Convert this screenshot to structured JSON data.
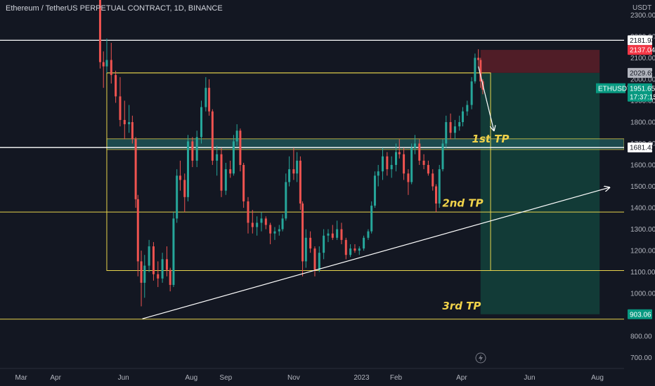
{
  "header": {
    "title": "Ethereum / TetherUS PERPETUAL CONTRACT, 1D, BINANCE"
  },
  "currency": "USDT",
  "colors": {
    "background": "#131722",
    "up": "#26a69a",
    "down": "#ef5350",
    "zone_line": "#e8d44d",
    "level_line": "#ffffff",
    "stop_zone": "#5c1f28",
    "target_zone": "#133f3a"
  },
  "y_axis": {
    "min": 650,
    "max": 2370,
    "ticks": [
      "700.00",
      "800.00",
      "900.00",
      "1000.00",
      "1100.00",
      "1200.00",
      "1300.00",
      "1400.00",
      "1500.00",
      "1600.00",
      "1700.00",
      "1800.00",
      "1900.00",
      "2000.00",
      "2100.00",
      "2200.00",
      "2300.00"
    ]
  },
  "x_axis": {
    "labels": [
      {
        "label": "Mar",
        "date": "2022-03-01"
      },
      {
        "label": "Apr",
        "date": "2022-04-01"
      },
      {
        "label": "Jun",
        "date": "2022-06-01"
      },
      {
        "label": "Aug",
        "date": "2022-08-01"
      },
      {
        "label": "Sep",
        "date": "2022-09-01"
      },
      {
        "label": "Nov",
        "date": "2022-11-01"
      },
      {
        "label": "2023",
        "date": "2023-01-01"
      },
      {
        "label": "Feb",
        "date": "2023-02-01"
      },
      {
        "label": "Apr",
        "date": "2023-04-01"
      },
      {
        "label": "Jun",
        "date": "2023-06-01"
      },
      {
        "label": "Aug",
        "date": "2023-08-01"
      }
    ]
  },
  "price_tags": [
    {
      "value": "2181.93",
      "price": 2181.93,
      "style": "white"
    },
    {
      "value": "2137.04",
      "price": 2137.04,
      "style": "red"
    },
    {
      "value": "2029.69",
      "price": 2029.69,
      "style": "grey"
    },
    {
      "value": "1681.42",
      "price": 1681.42,
      "style": "white"
    },
    {
      "value": "903.06",
      "price": 903.06,
      "style": "green"
    }
  ],
  "last_price": {
    "symbol": "ETHUSDT.P",
    "price": "1951.65",
    "countdown": "17:37:15",
    "value": 1951.65
  },
  "annotations": {
    "tp1": {
      "label": "1st TP",
      "date": "2023-04-27",
      "price": 1705
    },
    "tp2": {
      "label": "2nd TP",
      "date": "2023-04-02",
      "price": 1405
    },
    "tp3": {
      "label": "3rd TP",
      "date": "2023-04-01",
      "price": 925
    }
  },
  "chart_data": {
    "type": "candlestick",
    "title": "",
    "xlabel": "",
    "ylabel": "",
    "x_range": [
      "2022-02-10",
      "2023-08-25"
    ],
    "y_range": [
      650,
      2370
    ],
    "grid": false,
    "horizontal_levels": [
      {
        "price": 2181.93,
        "color": "white",
        "from": "2022-02-10",
        "to": "2023-08-25"
      },
      {
        "price": 2029.69,
        "color": "yellow",
        "from": "2022-05-17",
        "to": "2023-04-27"
      },
      {
        "price": 1681.42,
        "color": "white",
        "from": "2022-02-10",
        "to": "2023-08-25"
      },
      {
        "price": 1380,
        "color": "yellow",
        "from": "2022-02-10",
        "to": "2023-08-25"
      },
      {
        "price": 1107,
        "color": "yellow",
        "from": "2022-05-17",
        "to": "2023-08-25"
      },
      {
        "price": 880,
        "color": "yellow",
        "from": "2022-02-10",
        "to": "2023-08-25"
      }
    ],
    "range_box": {
      "from": "2022-05-17",
      "to": "2023-04-27",
      "top": 2029.69,
      "bottom": 1107
    },
    "support_zone": {
      "from": "2022-05-17",
      "to": "2023-08-25",
      "top": 1722,
      "bottom": 1672
    },
    "trendline": {
      "from": {
        "date": "2022-06-18",
        "price": 882
      },
      "to": {
        "date": "2023-08-12",
        "price": 1495
      }
    },
    "projection_arrow": {
      "from": {
        "date": "2023-04-16",
        "price": 2060
      },
      "to": {
        "date": "2023-04-30",
        "price": 1760
      }
    },
    "position": {
      "from": "2023-04-18",
      "to": "2023-08-03",
      "entry": 2029.69,
      "stop": 2137.04,
      "target": 903.06
    },
    "series": [
      {
        "d": "2022-05-11",
        "o": 2460,
        "h": 2470,
        "l": 2050,
        "c": 2080
      },
      {
        "d": "2022-05-14",
        "o": 2080,
        "h": 2130,
        "l": 1960,
        "c": 2060
      },
      {
        "d": "2022-05-17",
        "o": 2060,
        "h": 2190,
        "l": 2030,
        "c": 2090
      },
      {
        "d": "2022-05-21",
        "o": 2090,
        "h": 2170,
        "l": 1980,
        "c": 2020
      },
      {
        "d": "2022-05-25",
        "o": 2020,
        "h": 2040,
        "l": 1890,
        "c": 1920
      },
      {
        "d": "2022-05-29",
        "o": 1920,
        "h": 2010,
        "l": 1780,
        "c": 1810
      },
      {
        "d": "2022-06-02",
        "o": 1810,
        "h": 1900,
        "l": 1720,
        "c": 1790
      },
      {
        "d": "2022-06-06",
        "o": 1790,
        "h": 1880,
        "l": 1750,
        "c": 1800
      },
      {
        "d": "2022-06-09",
        "o": 1800,
        "h": 1830,
        "l": 1700,
        "c": 1720
      },
      {
        "d": "2022-06-12",
        "o": 1720,
        "h": 1730,
        "l": 1400,
        "c": 1440
      },
      {
        "d": "2022-06-14",
        "o": 1440,
        "h": 1460,
        "l": 1080,
        "c": 1150
      },
      {
        "d": "2022-06-17",
        "o": 1150,
        "h": 1200,
        "l": 940,
        "c": 1050
      },
      {
        "d": "2022-06-20",
        "o": 1050,
        "h": 1180,
        "l": 980,
        "c": 1130
      },
      {
        "d": "2022-06-24",
        "o": 1130,
        "h": 1250,
        "l": 1100,
        "c": 1220
      },
      {
        "d": "2022-06-28",
        "o": 1220,
        "h": 1240,
        "l": 1060,
        "c": 1090
      },
      {
        "d": "2022-07-02",
        "o": 1090,
        "h": 1150,
        "l": 1030,
        "c": 1070
      },
      {
        "d": "2022-07-06",
        "o": 1070,
        "h": 1190,
        "l": 1050,
        "c": 1160
      },
      {
        "d": "2022-07-10",
        "o": 1160,
        "h": 1220,
        "l": 1080,
        "c": 1110
      },
      {
        "d": "2022-07-13",
        "o": 1110,
        "h": 1120,
        "l": 1010,
        "c": 1040
      },
      {
        "d": "2022-07-16",
        "o": 1040,
        "h": 1380,
        "l": 1030,
        "c": 1350
      },
      {
        "d": "2022-07-19",
        "o": 1350,
        "h": 1580,
        "l": 1330,
        "c": 1550
      },
      {
        "d": "2022-07-22",
        "o": 1550,
        "h": 1620,
        "l": 1480,
        "c": 1530
      },
      {
        "d": "2022-07-26",
        "o": 1530,
        "h": 1560,
        "l": 1380,
        "c": 1450
      },
      {
        "d": "2022-07-29",
        "o": 1450,
        "h": 1740,
        "l": 1430,
        "c": 1710
      },
      {
        "d": "2022-08-02",
        "o": 1710,
        "h": 1730,
        "l": 1590,
        "c": 1620
      },
      {
        "d": "2022-08-06",
        "o": 1620,
        "h": 1760,
        "l": 1590,
        "c": 1730
      },
      {
        "d": "2022-08-10",
        "o": 1730,
        "h": 1900,
        "l": 1700,
        "c": 1870
      },
      {
        "d": "2022-08-14",
        "o": 1870,
        "h": 2010,
        "l": 1850,
        "c": 1960
      },
      {
        "d": "2022-08-17",
        "o": 1960,
        "h": 2000,
        "l": 1830,
        "c": 1850
      },
      {
        "d": "2022-08-20",
        "o": 1850,
        "h": 1860,
        "l": 1600,
        "c": 1620
      },
      {
        "d": "2022-08-24",
        "o": 1620,
        "h": 1690,
        "l": 1550,
        "c": 1650
      },
      {
        "d": "2022-08-28",
        "o": 1650,
        "h": 1680,
        "l": 1450,
        "c": 1480
      },
      {
        "d": "2022-09-01",
        "o": 1480,
        "h": 1610,
        "l": 1460,
        "c": 1580
      },
      {
        "d": "2022-09-05",
        "o": 1580,
        "h": 1620,
        "l": 1540,
        "c": 1560
      },
      {
        "d": "2022-09-08",
        "o": 1560,
        "h": 1740,
        "l": 1550,
        "c": 1710
      },
      {
        "d": "2022-09-11",
        "o": 1710,
        "h": 1790,
        "l": 1690,
        "c": 1760
      },
      {
        "d": "2022-09-14",
        "o": 1760,
        "h": 1770,
        "l": 1570,
        "c": 1600
      },
      {
        "d": "2022-09-17",
        "o": 1600,
        "h": 1610,
        "l": 1400,
        "c": 1430
      },
      {
        "d": "2022-09-21",
        "o": 1430,
        "h": 1450,
        "l": 1280,
        "c": 1330
      },
      {
        "d": "2022-09-25",
        "o": 1330,
        "h": 1390,
        "l": 1280,
        "c": 1310
      },
      {
        "d": "2022-09-29",
        "o": 1310,
        "h": 1360,
        "l": 1270,
        "c": 1330
      },
      {
        "d": "2022-10-03",
        "o": 1330,
        "h": 1380,
        "l": 1290,
        "c": 1350
      },
      {
        "d": "2022-10-07",
        "o": 1350,
        "h": 1360,
        "l": 1300,
        "c": 1320
      },
      {
        "d": "2022-10-11",
        "o": 1320,
        "h": 1330,
        "l": 1230,
        "c": 1280
      },
      {
        "d": "2022-10-15",
        "o": 1280,
        "h": 1310,
        "l": 1250,
        "c": 1290
      },
      {
        "d": "2022-10-19",
        "o": 1290,
        "h": 1320,
        "l": 1270,
        "c": 1300
      },
      {
        "d": "2022-10-22",
        "o": 1300,
        "h": 1370,
        "l": 1290,
        "c": 1350
      },
      {
        "d": "2022-10-25",
        "o": 1350,
        "h": 1560,
        "l": 1340,
        "c": 1520
      },
      {
        "d": "2022-10-28",
        "o": 1520,
        "h": 1640,
        "l": 1500,
        "c": 1580
      },
      {
        "d": "2022-11-01",
        "o": 1580,
        "h": 1680,
        "l": 1530,
        "c": 1560
      },
      {
        "d": "2022-11-04",
        "o": 1560,
        "h": 1660,
        "l": 1520,
        "c": 1620
      },
      {
        "d": "2022-11-07",
        "o": 1620,
        "h": 1640,
        "l": 1390,
        "c": 1420
      },
      {
        "d": "2022-11-09",
        "o": 1420,
        "h": 1430,
        "l": 1080,
        "c": 1150
      },
      {
        "d": "2022-11-12",
        "o": 1150,
        "h": 1300,
        "l": 1120,
        "c": 1260
      },
      {
        "d": "2022-11-16",
        "o": 1260,
        "h": 1290,
        "l": 1190,
        "c": 1210
      },
      {
        "d": "2022-11-20",
        "o": 1210,
        "h": 1220,
        "l": 1080,
        "c": 1110
      },
      {
        "d": "2022-11-24",
        "o": 1110,
        "h": 1220,
        "l": 1100,
        "c": 1190
      },
      {
        "d": "2022-11-28",
        "o": 1190,
        "h": 1300,
        "l": 1160,
        "c": 1270
      },
      {
        "d": "2022-12-02",
        "o": 1270,
        "h": 1300,
        "l": 1240,
        "c": 1280
      },
      {
        "d": "2022-12-06",
        "o": 1280,
        "h": 1320,
        "l": 1250,
        "c": 1260
      },
      {
        "d": "2022-12-10",
        "o": 1260,
        "h": 1340,
        "l": 1250,
        "c": 1300
      },
      {
        "d": "2022-12-14",
        "o": 1300,
        "h": 1330,
        "l": 1230,
        "c": 1250
      },
      {
        "d": "2022-12-18",
        "o": 1250,
        "h": 1260,
        "l": 1160,
        "c": 1180
      },
      {
        "d": "2022-12-22",
        "o": 1180,
        "h": 1230,
        "l": 1170,
        "c": 1210
      },
      {
        "d": "2022-12-26",
        "o": 1210,
        "h": 1230,
        "l": 1190,
        "c": 1200
      },
      {
        "d": "2022-12-30",
        "o": 1200,
        "h": 1220,
        "l": 1180,
        "c": 1210
      },
      {
        "d": "2023-01-03",
        "o": 1210,
        "h": 1270,
        "l": 1200,
        "c": 1260
      },
      {
        "d": "2023-01-07",
        "o": 1260,
        "h": 1300,
        "l": 1250,
        "c": 1290
      },
      {
        "d": "2023-01-10",
        "o": 1290,
        "h": 1430,
        "l": 1280,
        "c": 1410
      },
      {
        "d": "2023-01-13",
        "o": 1410,
        "h": 1570,
        "l": 1400,
        "c": 1550
      },
      {
        "d": "2023-01-16",
        "o": 1550,
        "h": 1600,
        "l": 1500,
        "c": 1570
      },
      {
        "d": "2023-01-20",
        "o": 1570,
        "h": 1680,
        "l": 1530,
        "c": 1640
      },
      {
        "d": "2023-01-24",
        "o": 1640,
        "h": 1660,
        "l": 1550,
        "c": 1580
      },
      {
        "d": "2023-01-28",
        "o": 1580,
        "h": 1640,
        "l": 1540,
        "c": 1600
      },
      {
        "d": "2023-02-01",
        "o": 1600,
        "h": 1700,
        "l": 1570,
        "c": 1660
      },
      {
        "d": "2023-02-04",
        "o": 1660,
        "h": 1720,
        "l": 1630,
        "c": 1650
      },
      {
        "d": "2023-02-08",
        "o": 1650,
        "h": 1680,
        "l": 1530,
        "c": 1560
      },
      {
        "d": "2023-02-12",
        "o": 1560,
        "h": 1580,
        "l": 1460,
        "c": 1520
      },
      {
        "d": "2023-02-15",
        "o": 1520,
        "h": 1700,
        "l": 1510,
        "c": 1680
      },
      {
        "d": "2023-02-18",
        "o": 1680,
        "h": 1740,
        "l": 1650,
        "c": 1700
      },
      {
        "d": "2023-02-22",
        "o": 1700,
        "h": 1720,
        "l": 1600,
        "c": 1620
      },
      {
        "d": "2023-02-26",
        "o": 1620,
        "h": 1650,
        "l": 1580,
        "c": 1600
      },
      {
        "d": "2023-03-02",
        "o": 1600,
        "h": 1620,
        "l": 1550,
        "c": 1560
      },
      {
        "d": "2023-03-06",
        "o": 1560,
        "h": 1580,
        "l": 1480,
        "c": 1500
      },
      {
        "d": "2023-03-09",
        "o": 1500,
        "h": 1510,
        "l": 1380,
        "c": 1420
      },
      {
        "d": "2023-03-12",
        "o": 1420,
        "h": 1600,
        "l": 1400,
        "c": 1580
      },
      {
        "d": "2023-03-15",
        "o": 1580,
        "h": 1720,
        "l": 1570,
        "c": 1700
      },
      {
        "d": "2023-03-18",
        "o": 1700,
        "h": 1830,
        "l": 1680,
        "c": 1800
      },
      {
        "d": "2023-03-22",
        "o": 1800,
        "h": 1840,
        "l": 1720,
        "c": 1750
      },
      {
        "d": "2023-03-26",
        "o": 1750,
        "h": 1810,
        "l": 1720,
        "c": 1780
      },
      {
        "d": "2023-03-30",
        "o": 1780,
        "h": 1830,
        "l": 1760,
        "c": 1800
      },
      {
        "d": "2023-04-02",
        "o": 1800,
        "h": 1870,
        "l": 1780,
        "c": 1850
      },
      {
        "d": "2023-04-06",
        "o": 1850,
        "h": 1900,
        "l": 1830,
        "c": 1880
      },
      {
        "d": "2023-04-10",
        "o": 1880,
        "h": 2010,
        "l": 1860,
        "c": 1990
      },
      {
        "d": "2023-04-13",
        "o": 1990,
        "h": 2120,
        "l": 1980,
        "c": 2100
      },
      {
        "d": "2023-04-16",
        "o": 2100,
        "h": 2140,
        "l": 2060,
        "c": 2090
      },
      {
        "d": "2023-04-18",
        "o": 2090,
        "h": 2100,
        "l": 1960,
        "c": 1990
      },
      {
        "d": "2023-04-20",
        "o": 1990,
        "h": 2000,
        "l": 1930,
        "c": 1951.65
      }
    ]
  }
}
